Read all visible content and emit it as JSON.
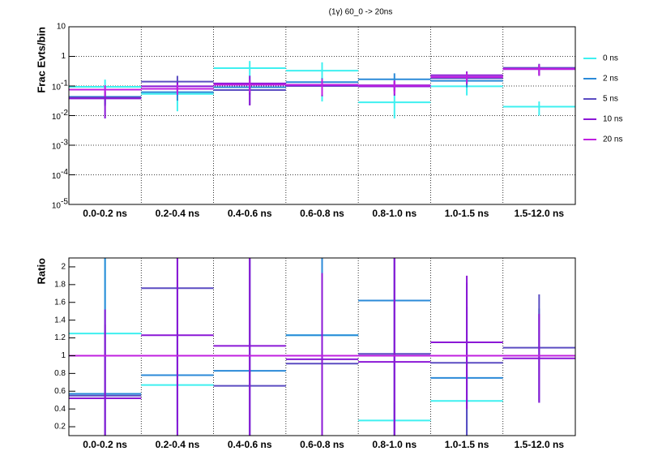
{
  "chart_data": [
    {
      "type": "errorbar",
      "title": "(1γ) 60_0 -> 20ns",
      "ylabel": "Frac Evts/bin",
      "log_y": true,
      "grid": true,
      "legend": "right",
      "categories": [
        "0.0-0.2 ns",
        "0.2-0.4 ns",
        "0.4-0.6 ns",
        "0.6-0.8 ns",
        "0.8-1.0 ns",
        "1.0-1.5 ns",
        "1.5-12.0 ns"
      ],
      "ylim": [
        1e-05,
        10
      ],
      "yticks": [
        {
          "value": 1e-05,
          "label": "10",
          "exponent": "-5"
        },
        {
          "value": 0.0001,
          "label": "10",
          "exponent": "-4"
        },
        {
          "value": 0.001,
          "label": "10",
          "exponent": "-3"
        },
        {
          "value": 0.01,
          "label": "10",
          "exponent": "-2"
        },
        {
          "value": 0.1,
          "label": "10",
          "exponent": "-1"
        },
        1,
        10
      ],
      "series": [
        {
          "name": "0 ns",
          "color": "#3ff0f0",
          "values": [
            0.094,
            0.054,
            0.4,
            0.33,
            0.028,
            0.098,
            0.02
          ],
          "errors": [
            0.07,
            0.04,
            0.3,
            0.3,
            0.02,
            0.05,
            0.01
          ]
        },
        {
          "name": "2 ns",
          "color": "#2b8ad8",
          "values": [
            0.043,
            0.062,
            0.091,
            0.135,
            0.168,
            0.15,
            0.38
          ],
          "errors": [
            0.02,
            0.03,
            0.04,
            0.05,
            0.1,
            0.06,
            0.15
          ]
        },
        {
          "name": "5 ns",
          "color": "#5b4cc2",
          "values": [
            0.041,
            0.14,
            0.073,
            0.1,
            0.106,
            0.184,
            0.41
          ],
          "errors": [
            0.02,
            0.08,
            0.05,
            0.04,
            0.04,
            0.07,
            0.15
          ]
        },
        {
          "name": "10 ns",
          "color": "#8b18d6",
          "values": [
            0.038,
            0.098,
            0.122,
            0.105,
            0.097,
            0.23,
            0.37
          ],
          "errors": [
            0.03,
            0.04,
            0.1,
            0.06,
            0.05,
            0.08,
            0.15
          ]
        },
        {
          "name": "20 ns",
          "color": "#c020e0",
          "values": [
            0.075,
            0.08,
            0.11,
            0.11,
            0.104,
            0.2,
            0.38
          ],
          "errors": [
            0.03,
            0.03,
            0.05,
            0.06,
            0.05,
            0.08,
            0.15
          ]
        }
      ]
    },
    {
      "type": "errorbar",
      "ylabel": "Ratio",
      "log_y": false,
      "grid": false,
      "categories": [
        "0.0-0.2 ns",
        "0.2-0.4 ns",
        "0.4-0.6 ns",
        "0.6-0.8 ns",
        "0.8-1.0 ns",
        "1.0-1.5 ns",
        "1.5-12.0 ns"
      ],
      "ylim": [
        0.1,
        2.1
      ],
      "yticks": [
        0.2,
        0.4,
        0.6,
        0.8,
        1,
        1.2,
        1.4,
        1.6,
        1.8,
        2
      ],
      "series": [
        {
          "name": "0 ns",
          "color": "#3ff0f0",
          "values": [
            1.25,
            0.67,
            null,
            1.23,
            0.27,
            0.49,
            null
          ],
          "errors": [
            1.2,
            0.5,
            null,
            1.2,
            0.2,
            0.35,
            null
          ]
        },
        {
          "name": "2 ns",
          "color": "#2b8ad8",
          "values": [
            0.57,
            0.78,
            0.83,
            1.23,
            1.62,
            0.75,
            1.0
          ],
          "errors": [
            1.6,
            1.0,
            1.4,
            1.2,
            1.6,
            0.8,
            0.53
          ]
        },
        {
          "name": "5 ns",
          "color": "#5b4cc2",
          "values": [
            0.55,
            1.76,
            0.66,
            0.91,
            1.02,
            0.92,
            1.09
          ],
          "errors": [
            0.8,
            1.5,
            1.6,
            0.9,
            1.1,
            0.9,
            0.6
          ]
        },
        {
          "name": "10 ns",
          "color": "#8b18d6",
          "values": [
            0.52,
            1.23,
            1.11,
            0.96,
            0.93,
            1.15,
            0.97
          ],
          "errors": [
            1.0,
            1.5,
            1.6,
            0.97,
            1.3,
            0.75,
            0.5
          ]
        },
        {
          "name": "20 ns",
          "color": "#c020e0",
          "values": [
            1,
            1,
            1,
            1,
            1,
            1,
            1
          ]
        }
      ]
    }
  ]
}
